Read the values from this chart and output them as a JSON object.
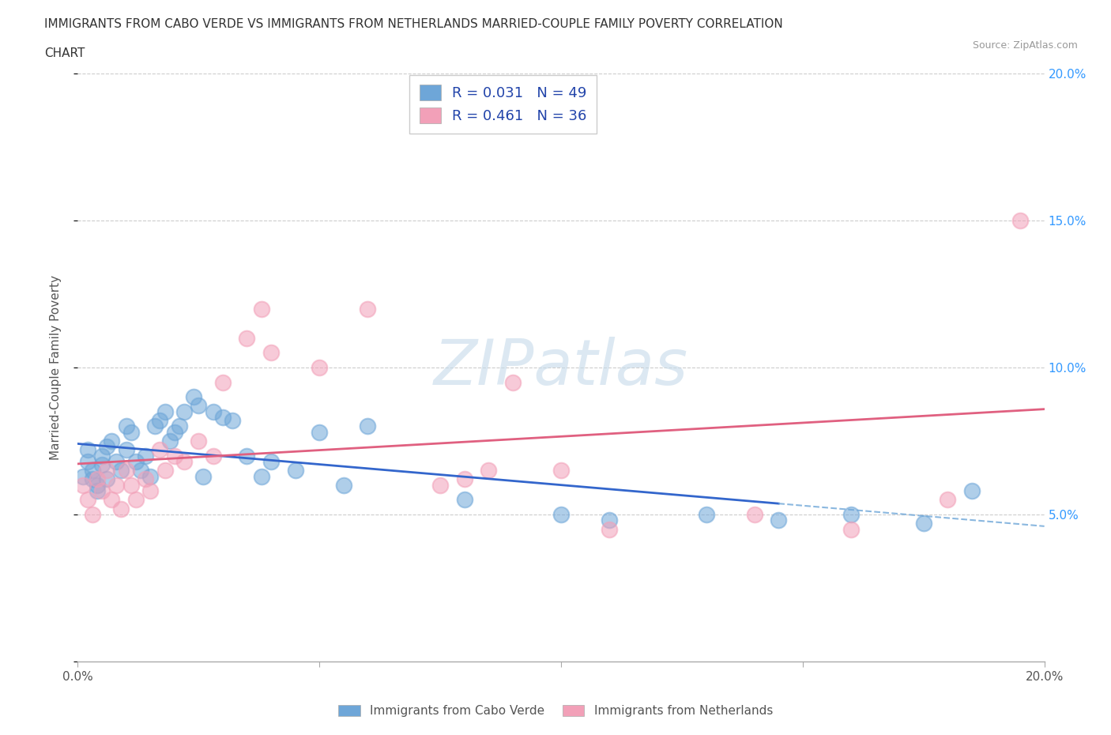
{
  "title_line1": "IMMIGRANTS FROM CABO VERDE VS IMMIGRANTS FROM NETHERLANDS MARRIED-COUPLE FAMILY POVERTY CORRELATION",
  "title_line2": "CHART",
  "source": "Source: ZipAtlas.com",
  "ylabel": "Married-Couple Family Poverty",
  "xlim": [
    0.0,
    0.2
  ],
  "ylim": [
    0.0,
    0.2
  ],
  "xticks": [
    0.0,
    0.05,
    0.1,
    0.15,
    0.2
  ],
  "yticks": [
    0.0,
    0.05,
    0.1,
    0.15,
    0.2
  ],
  "xticklabels": [
    "0.0%",
    "",
    "",
    "",
    "20.0%"
  ],
  "yticklabels_left": [
    "",
    "",
    "",
    "",
    ""
  ],
  "yticklabels_right": [
    "",
    "5.0%",
    "10.0%",
    "15.0%",
    "20.0%"
  ],
  "cabo_verde_color": "#6ea6d8",
  "netherlands_color": "#f2a0b8",
  "cabo_verde_R": 0.031,
  "cabo_verde_N": 49,
  "netherlands_R": 0.461,
  "netherlands_N": 36,
  "cabo_verde_x": [
    0.001,
    0.002,
    0.002,
    0.003,
    0.003,
    0.004,
    0.004,
    0.005,
    0.005,
    0.006,
    0.006,
    0.007,
    0.008,
    0.009,
    0.01,
    0.01,
    0.011,
    0.012,
    0.013,
    0.014,
    0.015,
    0.016,
    0.017,
    0.018,
    0.019,
    0.02,
    0.021,
    0.022,
    0.024,
    0.025,
    0.026,
    0.028,
    0.03,
    0.032,
    0.035,
    0.038,
    0.04,
    0.045,
    0.05,
    0.055,
    0.06,
    0.08,
    0.1,
    0.11,
    0.13,
    0.145,
    0.16,
    0.175,
    0.185
  ],
  "cabo_verde_y": [
    0.063,
    0.068,
    0.072,
    0.065,
    0.062,
    0.06,
    0.058,
    0.07,
    0.067,
    0.073,
    0.062,
    0.075,
    0.068,
    0.065,
    0.08,
    0.072,
    0.078,
    0.068,
    0.065,
    0.07,
    0.063,
    0.08,
    0.082,
    0.085,
    0.075,
    0.078,
    0.08,
    0.085,
    0.09,
    0.087,
    0.063,
    0.085,
    0.083,
    0.082,
    0.07,
    0.063,
    0.068,
    0.065,
    0.078,
    0.06,
    0.08,
    0.055,
    0.05,
    0.048,
    0.05,
    0.048,
    0.05,
    0.047,
    0.058
  ],
  "netherlands_x": [
    0.001,
    0.002,
    0.003,
    0.004,
    0.005,
    0.006,
    0.007,
    0.008,
    0.009,
    0.01,
    0.011,
    0.012,
    0.014,
    0.015,
    0.017,
    0.018,
    0.02,
    0.022,
    0.025,
    0.028,
    0.03,
    0.035,
    0.038,
    0.04,
    0.05,
    0.06,
    0.075,
    0.08,
    0.085,
    0.09,
    0.1,
    0.11,
    0.14,
    0.16,
    0.18,
    0.195
  ],
  "netherlands_y": [
    0.06,
    0.055,
    0.05,
    0.062,
    0.058,
    0.065,
    0.055,
    0.06,
    0.052,
    0.065,
    0.06,
    0.055,
    0.062,
    0.058,
    0.072,
    0.065,
    0.07,
    0.068,
    0.075,
    0.07,
    0.095,
    0.11,
    0.12,
    0.105,
    0.1,
    0.12,
    0.06,
    0.062,
    0.065,
    0.095,
    0.065,
    0.045,
    0.05,
    0.045,
    0.055,
    0.15
  ],
  "grid_color": "#cccccc",
  "line_blue": "#3366cc",
  "line_pink": "#e06080",
  "background_color": "#ffffff"
}
